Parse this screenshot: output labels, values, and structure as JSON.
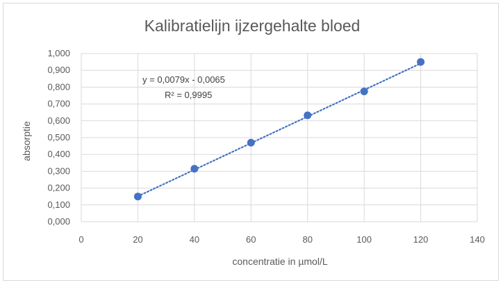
{
  "chart_data": {
    "type": "scatter",
    "title": "Kalibratielijn ijzergehalte bloed",
    "xlabel": "concentratie in µmol/L",
    "ylabel": "absorptie",
    "xlim": [
      0,
      140
    ],
    "ylim": [
      0,
      1.0
    ],
    "x_ticks": [
      "0",
      "20",
      "40",
      "60",
      "80",
      "100",
      "120",
      "140"
    ],
    "y_ticks": [
      "0,000",
      "0,100",
      "0,200",
      "0,300",
      "0,400",
      "0,500",
      "0,600",
      "0,700",
      "0,800",
      "0,900",
      "1,000"
    ],
    "grid": true,
    "legend": "none",
    "points": [
      {
        "x": 20,
        "y": 0.15
      },
      {
        "x": 40,
        "y": 0.315
      },
      {
        "x": 60,
        "y": 0.47
      },
      {
        "x": 80,
        "y": 0.633
      },
      {
        "x": 100,
        "y": 0.775
      },
      {
        "x": 120,
        "y": 0.95
      }
    ],
    "trendline": {
      "type": "linear",
      "slope": 0.0079,
      "intercept": -0.0065,
      "x_range": [
        20,
        120
      ],
      "equation_text": "y = 0,0079x - 0,0065",
      "r2_text": "R² = 0,9995"
    },
    "colors": {
      "marker": "#4472c4",
      "trendline": "#4472c4",
      "grid": "#d9d9d9",
      "text": "#595959"
    }
  }
}
